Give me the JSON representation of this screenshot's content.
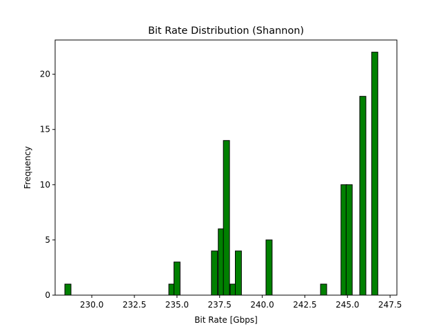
{
  "chart_data": {
    "type": "bar",
    "title": "Bit Rate Distribution (Shannon)",
    "xlabel": "Bit Rate [Gbps]",
    "ylabel": "Frequency",
    "xlim": [
      227.85,
      247.9
    ],
    "ylim": [
      0,
      23.1
    ],
    "xticks": [
      "230.0",
      "232.5",
      "235.0",
      "237.5",
      "240.0",
      "242.5",
      "245.0",
      "247.5"
    ],
    "yticks": [
      "0",
      "5",
      "10",
      "15",
      "20"
    ],
    "bin_width": 0.36,
    "bar_color": "#008000",
    "edge_color": "#000000",
    "grid": false,
    "bins": [
      {
        "x": 228.6,
        "count": 1
      },
      {
        "x": 234.7,
        "count": 1
      },
      {
        "x": 235.0,
        "count": 3
      },
      {
        "x": 237.2,
        "count": 4
      },
      {
        "x": 237.6,
        "count": 6
      },
      {
        "x": 237.9,
        "count": 14
      },
      {
        "x": 238.3,
        "count": 1
      },
      {
        "x": 238.6,
        "count": 4
      },
      {
        "x": 240.4,
        "count": 5
      },
      {
        "x": 243.6,
        "count": 1
      },
      {
        "x": 244.8,
        "count": 10
      },
      {
        "x": 245.1,
        "count": 10
      },
      {
        "x": 245.9,
        "count": 18
      },
      {
        "x": 246.6,
        "count": 22
      }
    ]
  }
}
